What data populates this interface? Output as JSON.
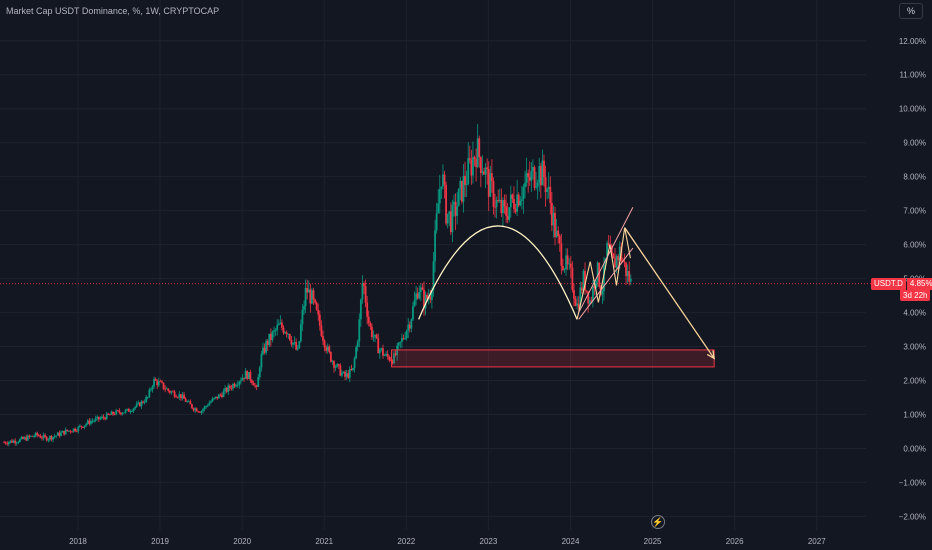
{
  "header": {
    "title": "Market Cap USDT Dominance, %, 1W, CRYPTOCAP",
    "unit_button": "%"
  },
  "price_tag": {
    "symbol": "USDT.D",
    "value": "4.85%",
    "countdown": "3d 22h"
  },
  "colors": {
    "background": "#131722",
    "up": "#089981",
    "down": "#f23645",
    "arc": "#fff3c4",
    "arrow": "#fcd59b",
    "wedge": "#f5a3a3",
    "zone": "#f23645"
  },
  "icons": {
    "logo": "lightning-bolt-icon"
  },
  "chart_data": {
    "type": "candlestick",
    "title": "Market Cap USDT Dominance, %, 1W, CRYPTOCAP",
    "xlabel": "",
    "ylabel": "",
    "x_ticks": [
      "2018",
      "2019",
      "2020",
      "2021",
      "2022",
      "2023",
      "2024",
      "2025",
      "2026",
      "2027"
    ],
    "y_ticks": [
      "12.00%",
      "11.00%",
      "10.00%",
      "9.00%",
      "8.00%",
      "7.00%",
      "6.00%",
      "5.00%",
      "4.00%",
      "3.00%",
      "2.00%",
      "1.00%",
      "0.00%",
      "−1.00%",
      "−2.00%"
    ],
    "ylim": [
      -2.4,
      13.2
    ],
    "xlim": [
      2017.05,
      2027.6
    ],
    "current_value": 4.85,
    "series_points": [
      [
        2017.1,
        0.18
      ],
      [
        2017.3,
        0.25
      ],
      [
        2017.5,
        0.4
      ],
      [
        2017.6,
        0.3
      ],
      [
        2017.7,
        0.35
      ],
      [
        2017.85,
        0.5
      ],
      [
        2018.0,
        0.6
      ],
      [
        2018.15,
        0.8
      ],
      [
        2018.3,
        0.9
      ],
      [
        2018.45,
        1.05
      ],
      [
        2018.6,
        1.1
      ],
      [
        2018.75,
        1.3
      ],
      [
        2018.85,
        1.5
      ],
      [
        2018.92,
        2.0
      ],
      [
        2019.0,
        1.9
      ],
      [
        2019.1,
        1.7
      ],
      [
        2019.25,
        1.55
      ],
      [
        2019.4,
        1.2
      ],
      [
        2019.5,
        1.1
      ],
      [
        2019.6,
        1.35
      ],
      [
        2019.75,
        1.6
      ],
      [
        2019.85,
        1.8
      ],
      [
        2019.95,
        2.0
      ],
      [
        2020.05,
        2.2
      ],
      [
        2020.13,
        2.0
      ],
      [
        2020.18,
        1.7
      ],
      [
        2020.22,
        2.6
      ],
      [
        2020.3,
        3.1
      ],
      [
        2020.45,
        3.6
      ],
      [
        2020.55,
        3.5
      ],
      [
        2020.62,
        3.1
      ],
      [
        2020.68,
        2.8
      ],
      [
        2020.72,
        3.7
      ],
      [
        2020.78,
        4.7
      ],
      [
        2020.85,
        4.4
      ],
      [
        2020.95,
        3.6
      ],
      [
        2021.05,
        2.8
      ],
      [
        2021.15,
        2.4
      ],
      [
        2021.25,
        2.1
      ],
      [
        2021.35,
        2.3
      ],
      [
        2021.42,
        3.5
      ],
      [
        2021.47,
        5.0
      ],
      [
        2021.55,
        3.6
      ],
      [
        2021.65,
        3.0
      ],
      [
        2021.75,
        2.7
      ],
      [
        2021.85,
        2.65
      ],
      [
        2021.95,
        3.2
      ],
      [
        2022.05,
        3.8
      ],
      [
        2022.15,
        4.8
      ],
      [
        2022.22,
        4.3
      ],
      [
        2022.3,
        4.6
      ],
      [
        2022.38,
        7.0
      ],
      [
        2022.43,
        8.2
      ],
      [
        2022.48,
        7.0
      ],
      [
        2022.55,
        6.7
      ],
      [
        2022.62,
        7.2
      ],
      [
        2022.7,
        7.8
      ],
      [
        2022.78,
        8.3
      ],
      [
        2022.85,
        8.8
      ],
      [
        2022.93,
        8.4
      ],
      [
        2023.0,
        7.8
      ],
      [
        2023.1,
        7.2
      ],
      [
        2023.2,
        6.9
      ],
      [
        2023.3,
        7.3
      ],
      [
        2023.4,
        7.6
      ],
      [
        2023.5,
        7.9
      ],
      [
        2023.6,
        8.2
      ],
      [
        2023.68,
        8.0
      ],
      [
        2023.75,
        7.3
      ],
      [
        2023.82,
        6.3
      ],
      [
        2023.9,
        5.6
      ],
      [
        2024.0,
        5.1
      ],
      [
        2024.08,
        4.2
      ],
      [
        2024.16,
        5.0
      ],
      [
        2024.24,
        4.3
      ],
      [
        2024.32,
        5.3
      ],
      [
        2024.38,
        4.6
      ],
      [
        2024.45,
        5.9
      ],
      [
        2024.52,
        5.4
      ],
      [
        2024.6,
        5.8
      ],
      [
        2024.68,
        5.2
      ],
      [
        2024.74,
        4.85
      ]
    ],
    "annotations": [
      {
        "type": "arc",
        "label": ""
      },
      {
        "type": "rising-wedge",
        "label": ""
      },
      {
        "type": "target-arrow",
        "label": ""
      },
      {
        "type": "support-zone",
        "label": "",
        "y_range": [
          2.4,
          2.9
        ]
      }
    ]
  }
}
